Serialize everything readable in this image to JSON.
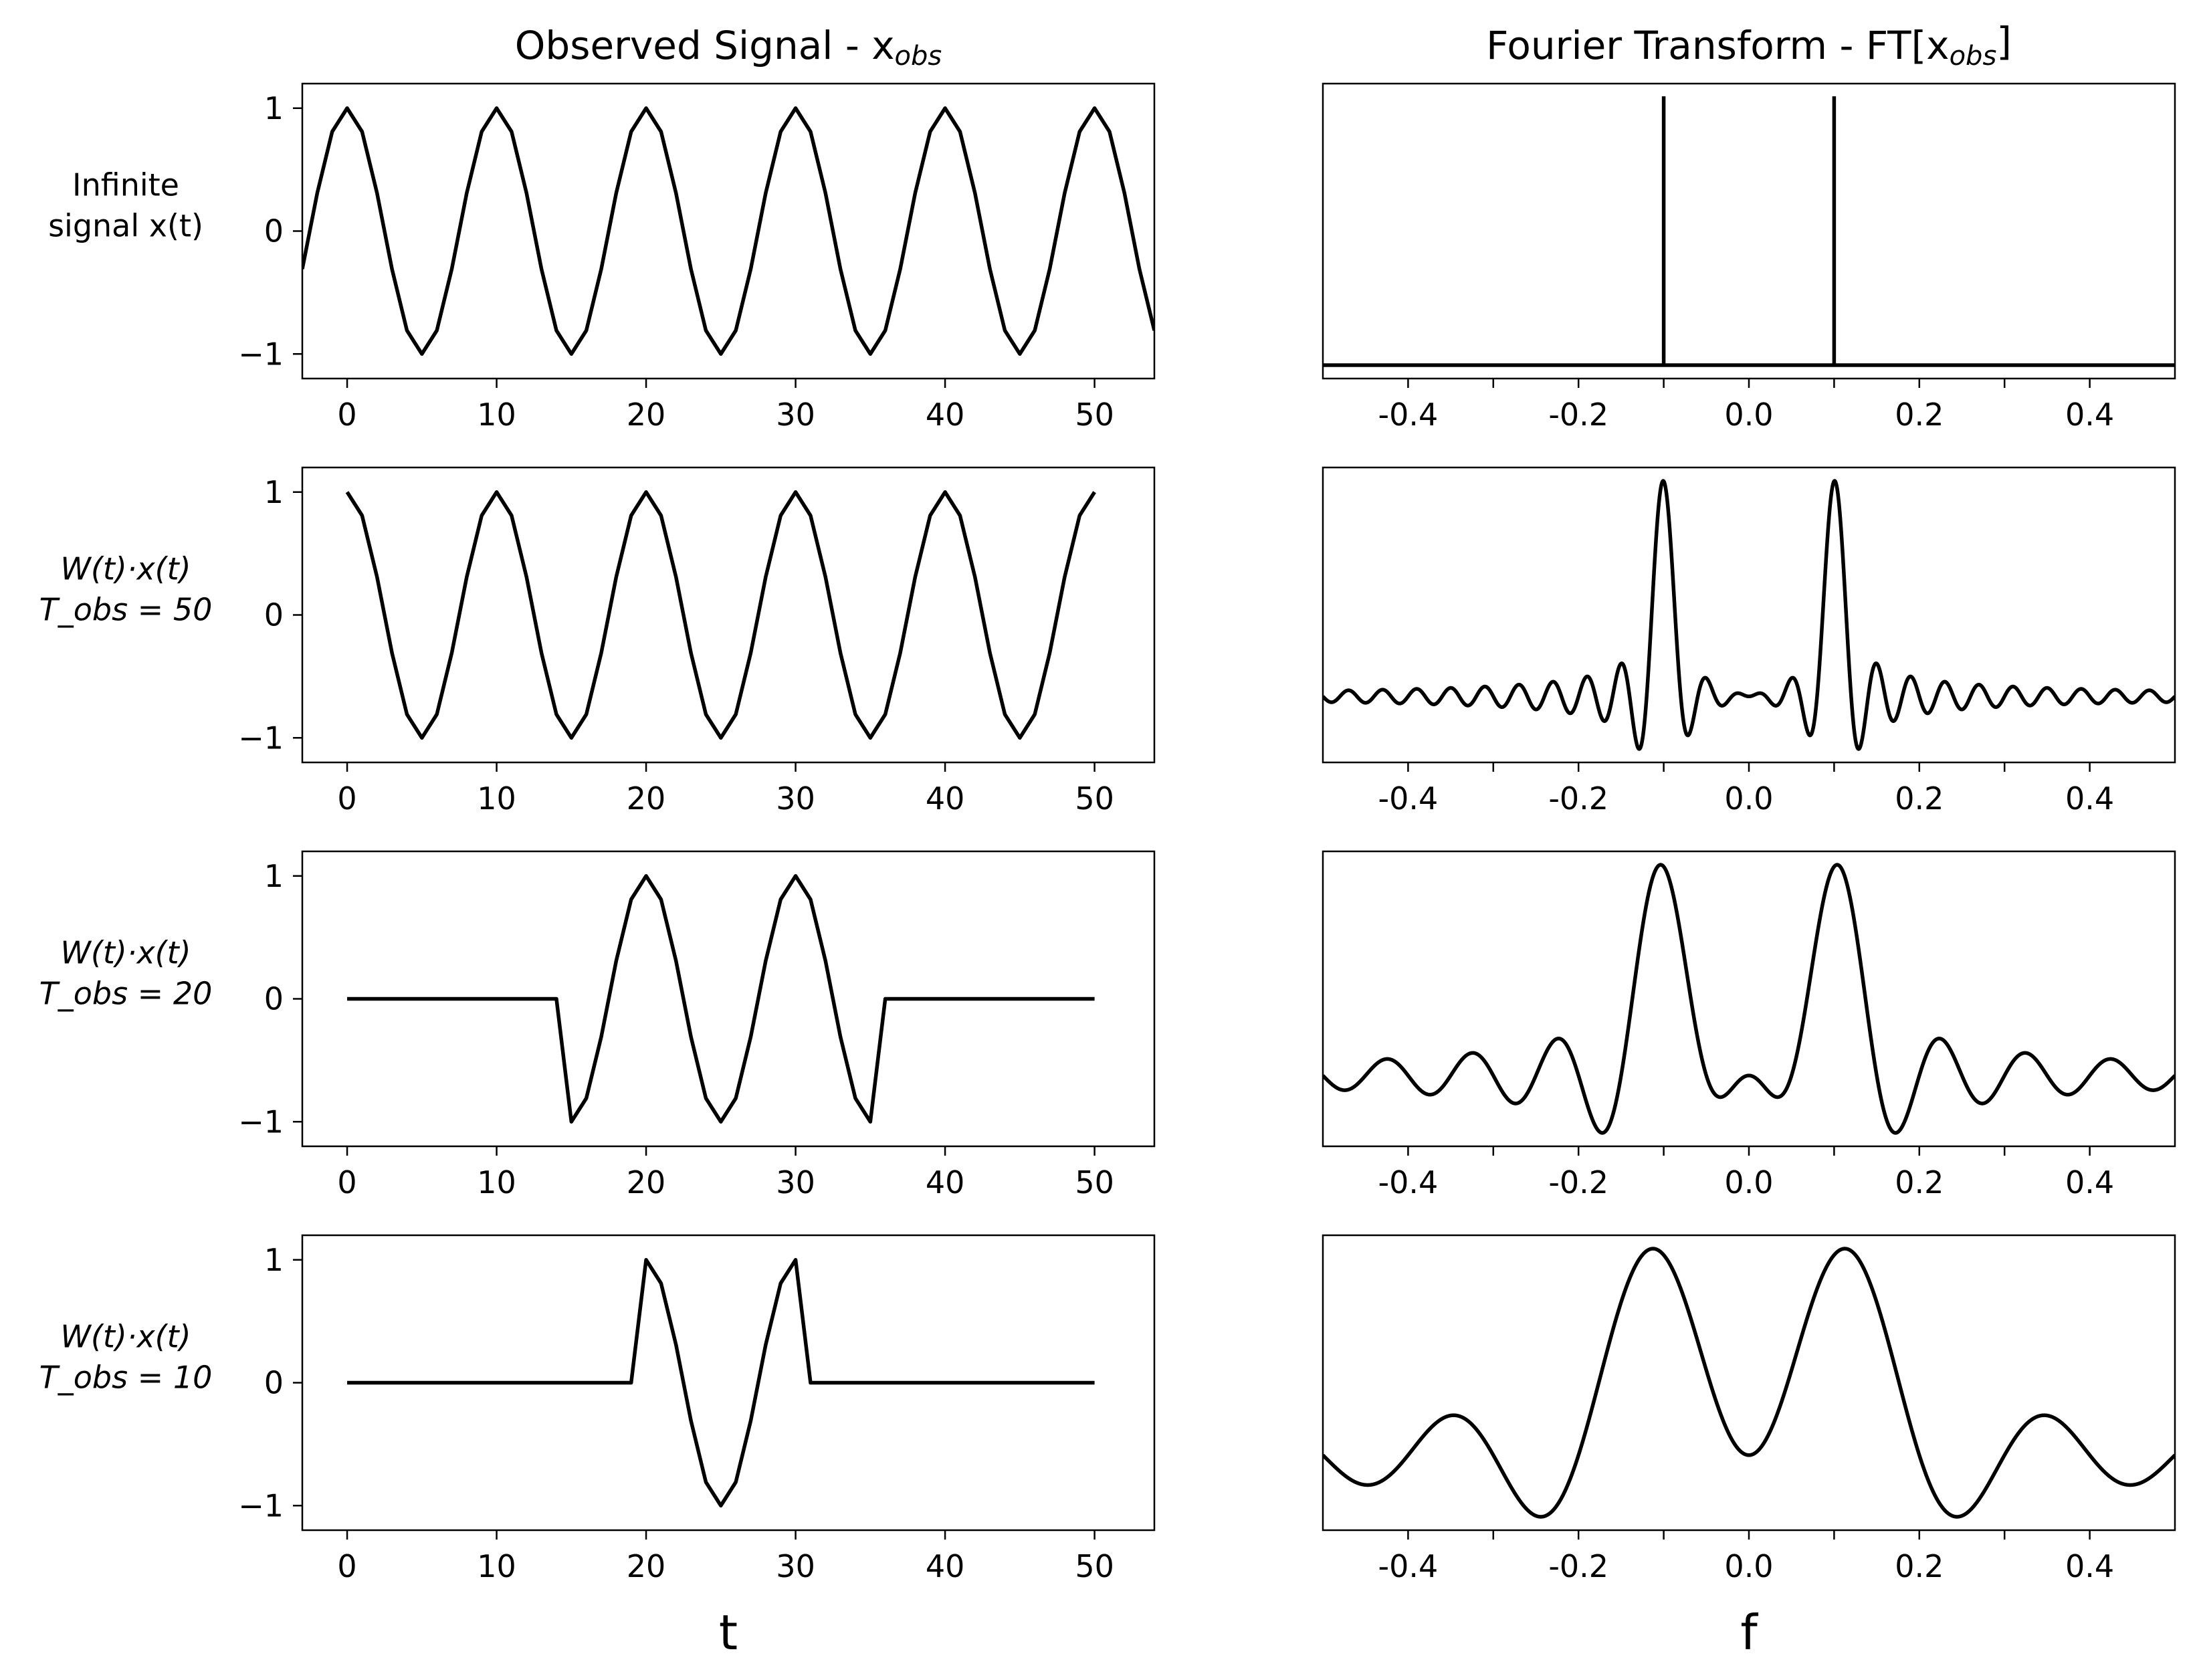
{
  "chart_data": [
    {
      "type": "line",
      "column_title": "Observed Signal - x",
      "column_title_sub": "obs",
      "row_label": [
        "Infinite",
        "signal x(t)"
      ],
      "xlabel": "",
      "xlim": [
        -3,
        54
      ],
      "ylim": [
        -1.2,
        1.2
      ],
      "xticks": [
        0,
        10,
        20,
        30,
        40,
        50
      ],
      "yticks": [
        {
          "v": 1,
          "label": "1"
        },
        {
          "v": 0,
          "label": "0"
        },
        {
          "v": -1,
          "label": "−1"
        }
      ],
      "signal": {
        "kind": "cosine",
        "period": 10,
        "sample_step": 1,
        "t_start": -3,
        "t_end": 54,
        "window": null
      },
      "series": [
        {
          "color": "#000000"
        }
      ]
    },
    {
      "type": "line",
      "column_title": "Fourier Transform - FT[x",
      "column_title_sub": "obs",
      "column_title_end": "]",
      "xlabel": "",
      "xlim": [
        -0.5,
        0.5
      ],
      "xticks": [
        {
          "v": -0.4,
          "label": "-0.4"
        },
        {
          "v": -0.2,
          "label": "-0.2"
        },
        {
          "v": 0.0,
          "label": "0.0"
        },
        {
          "v": 0.2,
          "label": "0.2"
        },
        {
          "v": 0.4,
          "label": "0.4"
        }
      ],
      "minor_xticks": [
        -0.3,
        -0.1,
        0.1,
        0.3
      ],
      "y_ticks_shown": false,
      "spectrum": {
        "kind": "impulses",
        "peaks": [
          -0.1,
          0.1
        ]
      },
      "series": [
        {
          "color": "#000000"
        }
      ]
    },
    {
      "type": "line",
      "row_label": [
        "W(t)·x(t)",
        "T_obs = 50"
      ],
      "xlabel": "",
      "xlim": [
        -3,
        54
      ],
      "ylim": [
        -1.2,
        1.2
      ],
      "xticks": [
        0,
        10,
        20,
        30,
        40,
        50
      ],
      "yticks": [
        {
          "v": 1,
          "label": "1"
        },
        {
          "v": 0,
          "label": "0"
        },
        {
          "v": -1,
          "label": "−1"
        }
      ],
      "signal": {
        "kind": "cosine",
        "period": 10,
        "sample_step": 1,
        "t_start": 0,
        "t_end": 50,
        "window": null
      },
      "series": [
        {
          "color": "#000000"
        }
      ]
    },
    {
      "type": "line",
      "xlabel": "",
      "xlim": [
        -0.5,
        0.5
      ],
      "xticks": [
        {
          "v": -0.4,
          "label": "-0.4"
        },
        {
          "v": -0.2,
          "label": "-0.2"
        },
        {
          "v": 0.0,
          "label": "0.0"
        },
        {
          "v": 0.2,
          "label": "0.2"
        },
        {
          "v": 0.4,
          "label": "0.4"
        }
      ],
      "minor_xticks": [
        -0.3,
        -0.1,
        0.1,
        0.3
      ],
      "y_ticks_shown": false,
      "spectrum": {
        "kind": "sinc",
        "peaks": [
          -0.1,
          0.1
        ],
        "T_obs": 50
      },
      "series": [
        {
          "color": "#000000"
        }
      ]
    },
    {
      "type": "line",
      "row_label": [
        "W(t)·x(t)",
        "T_obs = 20"
      ],
      "xlabel": "",
      "xlim": [
        -3,
        54
      ],
      "ylim": [
        -1.2,
        1.2
      ],
      "xticks": [
        0,
        10,
        20,
        30,
        40,
        50
      ],
      "yticks": [
        {
          "v": 1,
          "label": "1"
        },
        {
          "v": 0,
          "label": "0"
        },
        {
          "v": -1,
          "label": "−1"
        }
      ],
      "signal": {
        "kind": "cosine",
        "period": 10,
        "sample_step": 1,
        "t_start": 0,
        "t_end": 50,
        "window": [
          15,
          35
        ]
      },
      "series": [
        {
          "color": "#000000"
        }
      ]
    },
    {
      "type": "line",
      "xlabel": "",
      "xlim": [
        -0.5,
        0.5
      ],
      "xticks": [
        {
          "v": -0.4,
          "label": "-0.4"
        },
        {
          "v": -0.2,
          "label": "-0.2"
        },
        {
          "v": 0.0,
          "label": "0.0"
        },
        {
          "v": 0.2,
          "label": "0.2"
        },
        {
          "v": 0.4,
          "label": "0.4"
        }
      ],
      "minor_xticks": [
        -0.3,
        -0.1,
        0.1,
        0.3
      ],
      "y_ticks_shown": false,
      "spectrum": {
        "kind": "sinc",
        "peaks": [
          -0.1,
          0.1
        ],
        "T_obs": 20
      },
      "series": [
        {
          "color": "#000000"
        }
      ]
    },
    {
      "type": "line",
      "row_label": [
        "W(t)·x(t)",
        "T_obs = 10"
      ],
      "xlabel": "t",
      "xlim": [
        -3,
        54
      ],
      "ylim": [
        -1.2,
        1.2
      ],
      "xticks": [
        0,
        10,
        20,
        30,
        40,
        50
      ],
      "yticks": [
        {
          "v": 1,
          "label": "1"
        },
        {
          "v": 0,
          "label": "0"
        },
        {
          "v": -1,
          "label": "−1"
        }
      ],
      "signal": {
        "kind": "cosine",
        "period": 10,
        "sample_step": 1,
        "t_start": 0,
        "t_end": 50,
        "window": [
          20,
          30
        ]
      },
      "series": [
        {
          "color": "#000000"
        }
      ]
    },
    {
      "type": "line",
      "xlabel": "f",
      "xlim": [
        -0.5,
        0.5
      ],
      "xticks": [
        {
          "v": -0.4,
          "label": "-0.4"
        },
        {
          "v": -0.2,
          "label": "-0.2"
        },
        {
          "v": 0.0,
          "label": "0.0"
        },
        {
          "v": 0.2,
          "label": "0.2"
        },
        {
          "v": 0.4,
          "label": "0.4"
        }
      ],
      "minor_xticks": [
        -0.3,
        -0.1,
        0.1,
        0.3
      ],
      "y_ticks_shown": false,
      "spectrum": {
        "kind": "sinc",
        "peaks": [
          -0.1,
          0.1
        ],
        "T_obs": 10
      },
      "series": [
        {
          "color": "#000000"
        }
      ]
    }
  ]
}
